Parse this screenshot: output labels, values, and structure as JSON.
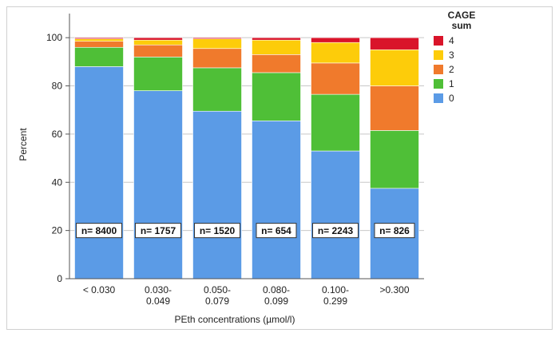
{
  "chart_data": {
    "type": "bar",
    "stacked": true,
    "categories": [
      "< 0.030",
      "0.030-\n0.049",
      "0.050-\n0.079",
      "0.080-\n0.099",
      "0.100-\n0.299",
      ">0.300"
    ],
    "n_labels": [
      "n= 8400",
      "n= 1757",
      "n= 1520",
      "n= 654",
      "n= 2243",
      "n= 826"
    ],
    "xlabel": "PEth concentrations (µmol/l)",
    "ylabel": "Percent",
    "ylim": [
      0,
      110
    ],
    "yticks": [
      0,
      20,
      40,
      60,
      80,
      100
    ],
    "legend_title": "CAGE\nsum",
    "legend_order": [
      "4",
      "3",
      "2",
      "1",
      "0"
    ],
    "series": [
      {
        "name": "0",
        "color": "#5b9be6",
        "values": [
          88,
          78,
          69.5,
          65.5,
          53,
          37.5
        ]
      },
      {
        "name": "1",
        "color": "#4fbf37",
        "values": [
          8,
          14,
          18,
          20,
          23.5,
          24
        ]
      },
      {
        "name": "2",
        "color": "#f07a2c",
        "values": [
          2.5,
          5,
          8,
          7.5,
          13,
          18.5
        ]
      },
      {
        "name": "3",
        "color": "#fdcc0a",
        "values": [
          1,
          2,
          4,
          6,
          8.5,
          15
        ]
      },
      {
        "name": "4",
        "color": "#d9142a",
        "values": [
          0.5,
          1,
          0.5,
          1,
          2,
          5
        ]
      }
    ]
  }
}
